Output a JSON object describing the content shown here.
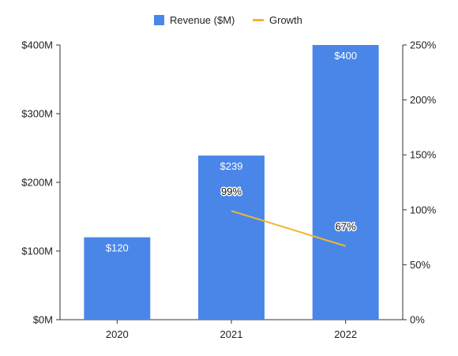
{
  "chart_data": {
    "type": "bar",
    "categories": [
      "2020",
      "2021",
      "2022"
    ],
    "series": [
      {
        "name": "Revenue ($M)",
        "type": "bar",
        "axis": "left",
        "values": [
          120,
          239,
          400
        ],
        "labels": [
          "$120",
          "$239",
          "$400"
        ],
        "color": "#4a86e8"
      },
      {
        "name": "Growth",
        "type": "line",
        "axis": "right",
        "values": [
          null,
          99,
          67
        ],
        "labels": [
          null,
          "99%",
          "67%"
        ],
        "color": "#f1b82d"
      }
    ],
    "y_left": {
      "min": 0,
      "max": 400,
      "ticks": [
        0,
        100,
        200,
        300,
        400
      ],
      "tick_labels": [
        "$0M",
        "$100M",
        "$200M",
        "$300M",
        "$400M"
      ]
    },
    "y_right": {
      "min": 0,
      "max": 250,
      "ticks": [
        0,
        50,
        100,
        150,
        200,
        250
      ],
      "tick_labels": [
        "0%",
        "50%",
        "100%",
        "150%",
        "200%",
        "250%"
      ]
    },
    "grid": false,
    "legend_position": "top-center"
  }
}
